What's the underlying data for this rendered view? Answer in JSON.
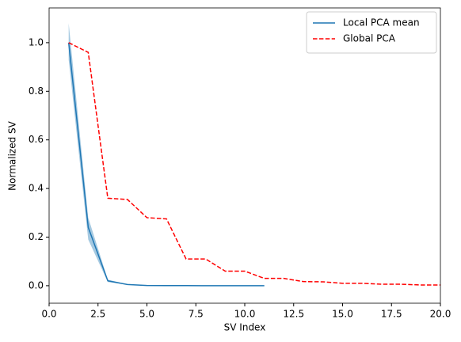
{
  "chart_data": {
    "type": "line",
    "xlabel": "SV Index",
    "ylabel": "Normalized SV",
    "xlim": [
      0,
      20
    ],
    "ylim": [
      -0.072,
      1.143
    ],
    "xticks": [
      {
        "value": 0,
        "label": "0.0"
      },
      2.5,
      {
        "value": 5,
        "label": "5.0"
      },
      7.5,
      {
        "value": 10,
        "label": "10.0"
      },
      12.5,
      {
        "value": 15,
        "label": "15.0"
      },
      17.5,
      {
        "value": 20,
        "label": "20.0"
      }
    ],
    "yticks": [
      {
        "value": 0,
        "label": "0.0"
      },
      0.2,
      0.4,
      0.6,
      0.8,
      {
        "value": 1,
        "label": "1.0"
      }
    ],
    "legend": "upper right",
    "series": [
      {
        "name": "Local PCA mean",
        "color": "#1f77b4",
        "dash": "solid",
        "x": [
          1,
          2,
          3,
          4,
          5,
          6,
          7,
          8,
          9,
          10,
          11
        ],
        "values": [
          1.0,
          0.24,
          0.02,
          0.005,
          0.001,
          0.0005,
          0.0003,
          0.0002,
          0.0001,
          0.0001,
          0.0001
        ],
        "lower": [
          0.93,
          0.19,
          0.015,
          0.004,
          0.0008,
          0.0004,
          0.0002,
          0.0001,
          0.0,
          0.0,
          0.0
        ],
        "upper": [
          1.08,
          0.28,
          0.025,
          0.006,
          0.0012,
          0.0006,
          0.0004,
          0.0003,
          0.0002,
          0.0002,
          0.0002
        ]
      },
      {
        "name": "Global PCA",
        "color": "#ff0000",
        "dash": "dashed",
        "x": [
          1,
          2,
          3,
          4,
          5,
          6,
          7,
          8,
          9,
          10,
          11,
          12,
          13,
          14,
          15,
          16,
          17,
          18,
          19,
          20
        ],
        "values": [
          1.0,
          0.96,
          0.36,
          0.355,
          0.28,
          0.275,
          0.11,
          0.11,
          0.06,
          0.06,
          0.03,
          0.03,
          0.017,
          0.016,
          0.01,
          0.01,
          0.006,
          0.006,
          0.003,
          0.003
        ]
      }
    ]
  }
}
